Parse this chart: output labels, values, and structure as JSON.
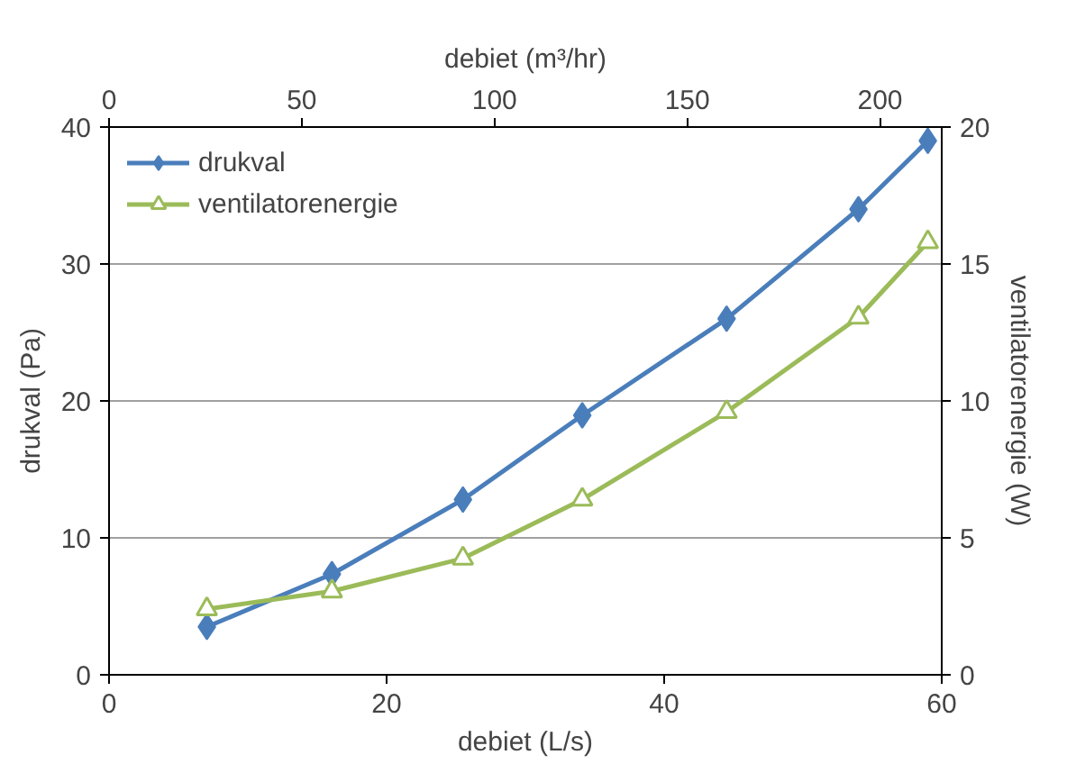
{
  "chart_data": {
    "type": "line",
    "xlabel": "debiet (L/s)",
    "ylabel": "drukval (Pa)",
    "y2label": "ventilatorenergie (W)",
    "x2label": "debiet (m³/hr)",
    "xlim": [
      0,
      60
    ],
    "xticks": [
      0,
      20,
      40,
      60
    ],
    "ylim": [
      0,
      40
    ],
    "yticks": [
      0,
      10,
      20,
      30,
      40
    ],
    "y2lim": [
      0,
      20
    ],
    "y2ticks": [
      0,
      5,
      10,
      15,
      20
    ],
    "x2lim": [
      0,
      216
    ],
    "x2ticks": [
      0,
      50,
      100,
      150,
      200
    ],
    "x": [
      7.05,
      16.06,
      25.5,
      34.1,
      44.5,
      54.0,
      59.0
    ],
    "series": [
      {
        "name": "drukval",
        "color": "#4a7ebb",
        "marker": "diamond",
        "values": [
          3.5,
          7.35,
          12.8,
          18.95,
          26.0,
          34.0,
          39.0
        ]
      },
      {
        "name": "ventilatorenergie",
        "color": "#9bbb59",
        "marker": "triangle",
        "axis": "y2",
        "values": [
          2.4,
          3.05,
          4.25,
          6.4,
          9.6,
          13.05,
          15.8
        ]
      }
    ],
    "grid": "y",
    "legend": "top left",
    "line_style": "solid"
  }
}
